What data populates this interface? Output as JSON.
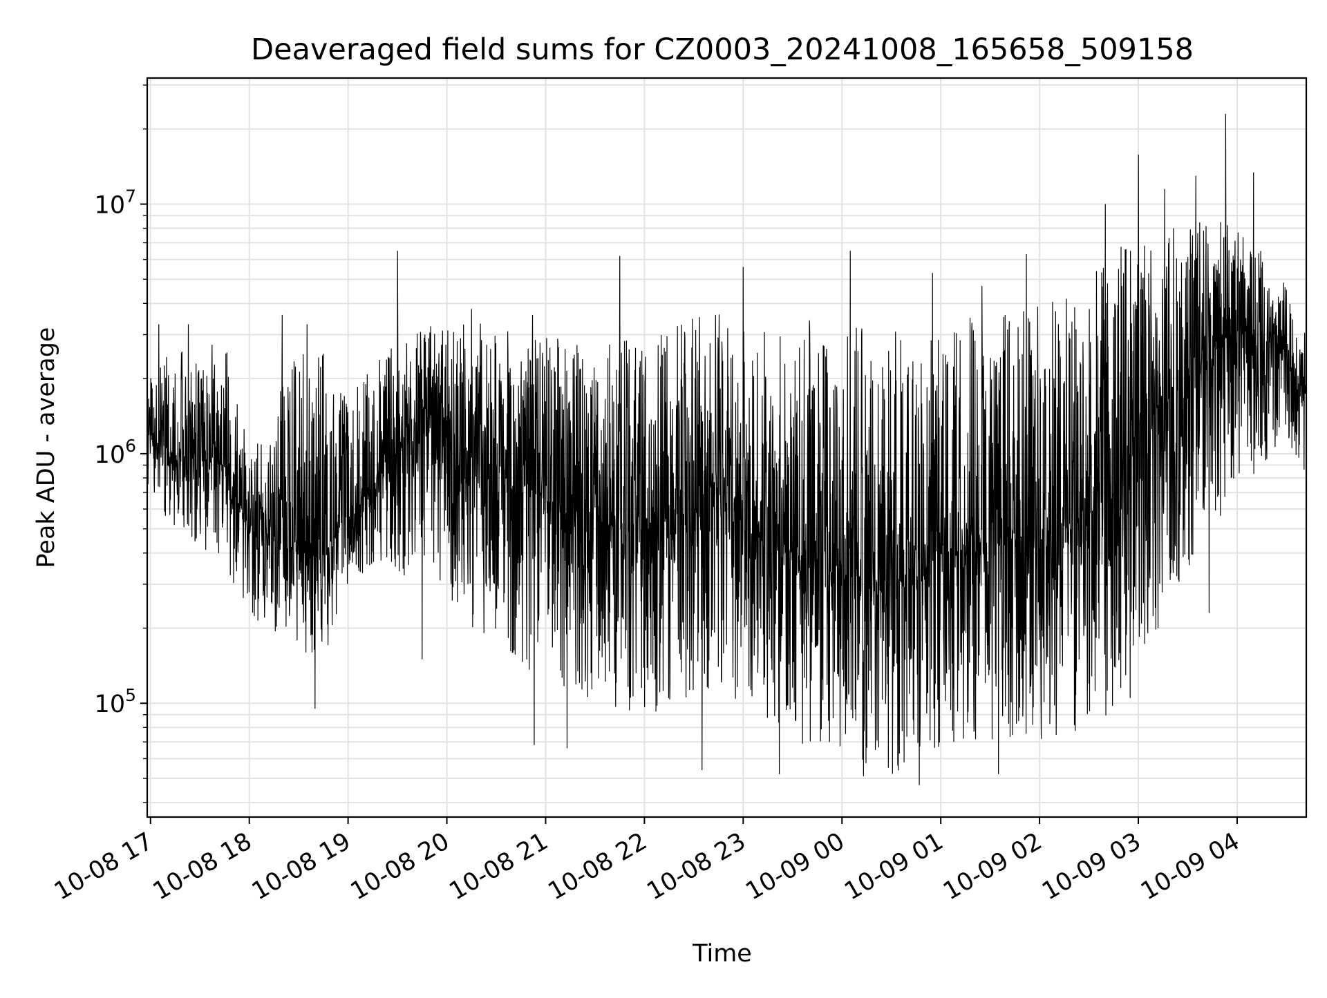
{
  "chart_data": {
    "type": "line",
    "title": "Deaveraged field sums for CZ0003_20241008_165658_509158",
    "xlabel": "Time",
    "ylabel": "Peak ADU - average",
    "x_range": [
      "2024-10-08 16:58",
      "2024-10-09 04:42"
    ],
    "ylim": [
      35000,
      32000000
    ],
    "yscale": "log",
    "grid": true,
    "x_ticks": [
      {
        "label": "10-08 17",
        "value": "2024-10-08 17:00"
      },
      {
        "label": "10-08 18",
        "value": "2024-10-08 18:00"
      },
      {
        "label": "10-08 19",
        "value": "2024-10-08 19:00"
      },
      {
        "label": "10-08 20",
        "value": "2024-10-08 20:00"
      },
      {
        "label": "10-08 21",
        "value": "2024-10-08 21:00"
      },
      {
        "label": "10-08 22",
        "value": "2024-10-08 22:00"
      },
      {
        "label": "10-08 23",
        "value": "2024-10-08 23:00"
      },
      {
        "label": "10-09 00",
        "value": "2024-10-09 00:00"
      },
      {
        "label": "10-09 01",
        "value": "2024-10-09 01:00"
      },
      {
        "label": "10-09 02",
        "value": "2024-10-09 02:00"
      },
      {
        "label": "10-09 03",
        "value": "2024-10-09 03:00"
      },
      {
        "label": "10-09 04",
        "value": "2024-10-09 04:00"
      }
    ],
    "y_ticks": [
      {
        "base": "10",
        "exp": "5",
        "value": 100000
      },
      {
        "base": "10",
        "exp": "6",
        "value": 1000000
      },
      {
        "base": "10",
        "exp": "7",
        "value": 10000000
      }
    ],
    "series": [
      {
        "color": "#000000",
        "x": [
          "2024-10-08 16:58",
          "2024-10-08 17:15",
          "2024-10-08 17:30",
          "2024-10-08 17:45",
          "2024-10-08 18:00",
          "2024-10-08 18:15",
          "2024-10-08 18:30",
          "2024-10-08 18:45",
          "2024-10-08 19:00",
          "2024-10-08 19:15",
          "2024-10-08 19:30",
          "2024-10-08 19:45",
          "2024-10-08 20:00",
          "2024-10-08 20:15",
          "2024-10-08 20:30",
          "2024-10-08 20:45",
          "2024-10-08 21:00",
          "2024-10-08 21:15",
          "2024-10-08 21:30",
          "2024-10-08 21:45",
          "2024-10-08 22:00",
          "2024-10-08 22:15",
          "2024-10-08 22:30",
          "2024-10-08 22:45",
          "2024-10-08 23:00",
          "2024-10-08 23:15",
          "2024-10-08 23:30",
          "2024-10-08 23:45",
          "2024-10-09 00:00",
          "2024-10-09 00:15",
          "2024-10-09 00:30",
          "2024-10-09 00:45",
          "2024-10-09 01:00",
          "2024-10-09 01:15",
          "2024-10-09 01:30",
          "2024-10-09 01:45",
          "2024-10-09 02:00",
          "2024-10-09 02:15",
          "2024-10-09 02:30",
          "2024-10-09 02:45",
          "2024-10-09 03:00",
          "2024-10-09 03:15",
          "2024-10-09 03:30",
          "2024-10-09 03:45",
          "2024-10-09 04:00",
          "2024-10-09 04:15",
          "2024-10-09 04:30",
          "2024-10-09 04:42"
        ],
        "center": [
          1200000,
          1000000,
          950000,
          900000,
          500000,
          450000,
          400000,
          380000,
          600000,
          750000,
          1000000,
          1500000,
          1300000,
          1000000,
          900000,
          800000,
          650000,
          600000,
          550000,
          500000,
          500000,
          550000,
          600000,
          700000,
          550000,
          450000,
          400000,
          380000,
          320000,
          320000,
          300000,
          320000,
          400000,
          430000,
          450000,
          460000,
          450000,
          500000,
          600000,
          700000,
          1200000,
          1700000,
          2100000,
          2400000,
          3000000,
          3200000,
          2500000,
          1800000
        ],
        "low": [
          700000,
          500000,
          400000,
          350000,
          230000,
          180000,
          160000,
          150000,
          300000,
          350000,
          300000,
          400000,
          250000,
          200000,
          180000,
          140000,
          120000,
          110000,
          100000,
          90000,
          90000,
          95000,
          100000,
          110000,
          90000,
          80000,
          70000,
          65000,
          60000,
          55000,
          52000,
          55000,
          65000,
          65000,
          68000,
          70000,
          70000,
          72000,
          80000,
          90000,
          150000,
          200000,
          350000,
          500000,
          700000,
          900000,
          1000000,
          800000
        ],
        "high": [
          2000000,
          2800000,
          2400000,
          3300000,
          1000000,
          1500000,
          3500000,
          2600000,
          1800000,
          2200000,
          3000000,
          3400000,
          3400000,
          3400000,
          3200000,
          3000000,
          3000000,
          2800000,
          2700000,
          3000000,
          2900000,
          3300000,
          3500000,
          3800000,
          3300000,
          3300000,
          3400000,
          3500000,
          3200000,
          3400000,
          3500000,
          3400000,
          3600000,
          3500000,
          3600000,
          3700000,
          4000000,
          4500000,
          5500000,
          6500000,
          7500000,
          8000000,
          8500000,
          8800000,
          8500000,
          6500000,
          5000000,
          3000000
        ],
        "spikes": [
          {
            "x": "2024-10-08 17:05",
            "y": 3300000
          },
          {
            "x": "2024-10-08 17:23",
            "y": 3300000
          },
          {
            "x": "2024-10-08 18:20",
            "y": 3600000
          },
          {
            "x": "2024-10-08 18:35",
            "y": 3300000
          },
          {
            "x": "2024-10-08 19:30",
            "y": 6500000
          },
          {
            "x": "2024-10-08 20:15",
            "y": 3800000
          },
          {
            "x": "2024-10-08 20:52",
            "y": 3600000
          },
          {
            "x": "2024-10-08 21:45",
            "y": 6200000
          },
          {
            "x": "2024-10-08 23:00",
            "y": 5600000
          },
          {
            "x": "2024-10-09 00:05",
            "y": 6500000
          },
          {
            "x": "2024-10-09 00:55",
            "y": 5300000
          },
          {
            "x": "2024-10-09 01:25",
            "y": 4700000
          },
          {
            "x": "2024-10-09 01:52",
            "y": 6300000
          },
          {
            "x": "2024-10-09 02:40",
            "y": 10000000
          },
          {
            "x": "2024-10-09 03:00",
            "y": 15800000
          },
          {
            "x": "2024-10-09 03:16",
            "y": 11500000
          },
          {
            "x": "2024-10-09 03:35",
            "y": 13000000
          },
          {
            "x": "2024-10-09 03:53",
            "y": 23000000
          },
          {
            "x": "2024-10-09 04:10",
            "y": 13400000
          }
        ],
        "dips": [
          {
            "x": "2024-10-08 18:40",
            "y": 95000
          },
          {
            "x": "2024-10-08 19:45",
            "y": 150000
          },
          {
            "x": "2024-10-08 20:53",
            "y": 68000
          },
          {
            "x": "2024-10-08 21:13",
            "y": 66000
          },
          {
            "x": "2024-10-08 22:35",
            "y": 54000
          },
          {
            "x": "2024-10-08 23:22",
            "y": 52000
          },
          {
            "x": "2024-10-09 00:13",
            "y": 51000
          },
          {
            "x": "2024-10-09 00:47",
            "y": 47000
          },
          {
            "x": "2024-10-09 01:35",
            "y": 52000
          },
          {
            "x": "2024-10-09 02:55",
            "y": 105000
          },
          {
            "x": "2024-10-09 03:12",
            "y": 200000
          },
          {
            "x": "2024-10-09 03:43",
            "y": 230000
          }
        ]
      }
    ]
  }
}
